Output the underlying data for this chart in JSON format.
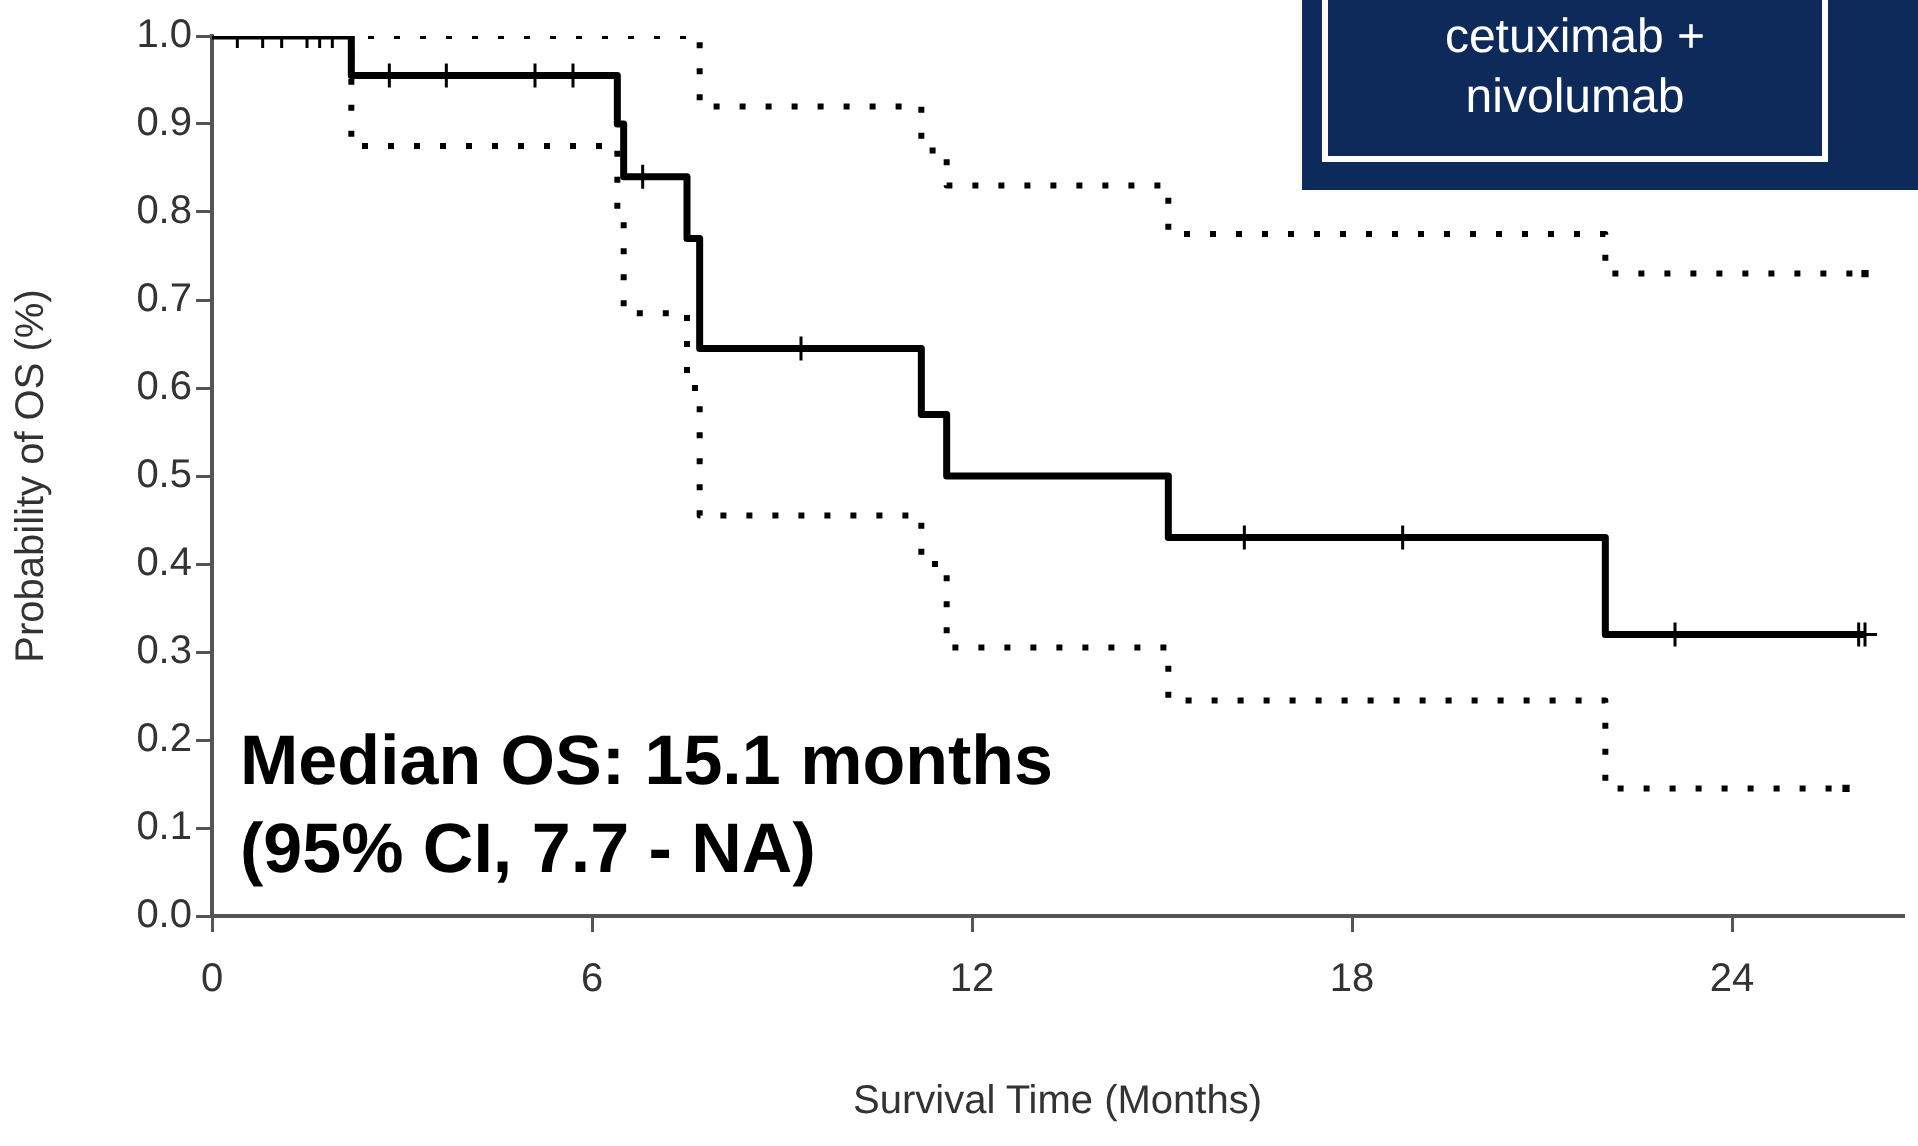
{
  "chart_data": {
    "type": "step",
    "title": "cetuximab + nivolumab",
    "xlabel": "Survival Time (Months)",
    "ylabel": "Probability of OS (%)",
    "xlim": [
      0,
      26.7
    ],
    "xticks": [
      0,
      6,
      12,
      18,
      24
    ],
    "ylim": [
      0,
      1
    ],
    "yticks": [
      {
        "value": 0,
        "label": "0.0"
      },
      {
        "value": 0.1,
        "label": "0.1"
      },
      {
        "value": 0.2,
        "label": "0.2"
      },
      {
        "value": 0.3,
        "label": "0.3"
      },
      {
        "value": 0.4,
        "label": "0.4"
      },
      {
        "value": 0.5,
        "label": "0.5"
      },
      {
        "value": 0.6,
        "label": "0.6"
      },
      {
        "value": 0.7,
        "label": "0.7"
      },
      {
        "value": 0.8,
        "label": "0.8"
      },
      {
        "value": 0.9,
        "label": "0.9"
      },
      {
        "value": 1,
        "label": "1.0"
      }
    ],
    "grid": false,
    "legend": false,
    "marker": "none",
    "series": [
      {
        "color": "#000000",
        "line_style": "solid",
        "x": [
          0,
          2.2,
          6.4,
          6.5,
          7.5,
          7.7,
          11.2,
          11.6,
          15.1,
          22.0,
          26.1
        ],
        "values": [
          1,
          0.955,
          0.9,
          0.84,
          0.77,
          0.645,
          0.57,
          0.5,
          0.43,
          0.32,
          0.32
        ]
      },
      {
        "color": "#000000",
        "line_style": "dotted",
        "x": [
          0,
          7.7,
          11.2,
          11.6,
          15.1,
          22.0,
          26.1
        ],
        "values": [
          1,
          0.92,
          0.87,
          0.83,
          0.775,
          0.73,
          0.73
        ]
      },
      {
        "color": "#000000",
        "line_style": "dotted",
        "x": [
          0,
          2.2,
          6.4,
          6.5,
          7.5,
          7.7,
          11.2,
          11.6,
          15.1,
          22.0,
          25.8
        ],
        "values": [
          1,
          0.875,
          0.8,
          0.685,
          0.6,
          0.455,
          0.4,
          0.305,
          0.245,
          0.145,
          0.145
        ]
      },
      {
        "type": "scatter",
        "color": "#000000",
        "marker": "cross",
        "x": [
          0.4,
          0.8,
          1.1,
          1.5,
          1.7,
          1.9,
          2.8,
          3.7,
          5.1,
          5.7,
          6.8,
          9.3,
          16.3,
          18.8,
          23.1,
          26.0,
          26.1
        ],
        "values": [
          1,
          1,
          1,
          1,
          1,
          1,
          0.955,
          0.955,
          0.955,
          0.955,
          0.84,
          0.645,
          0.43,
          0.43,
          0.32,
          0.32,
          0.32
        ]
      }
    ],
    "annotations": [
      "Median OS: 15.1 months",
      "(95% CI, 7.7 - NA)"
    ]
  }
}
